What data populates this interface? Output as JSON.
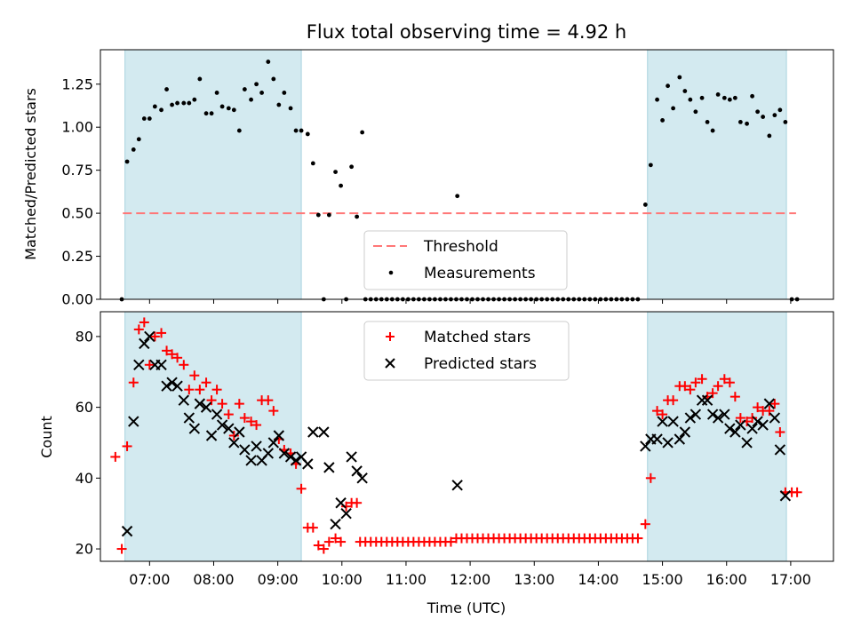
{
  "title": "Flux total observing time = 4.92 h",
  "chart_data": [
    {
      "panel": "top",
      "type": "scatter",
      "ylabel": "Matched/Predicted stars",
      "xlabel": "",
      "xlim": [
        "06:14",
        "17:40"
      ],
      "ylim": [
        0,
        1.45
      ],
      "yticks": [
        0.0,
        0.25,
        0.5,
        0.75,
        1.0,
        1.25
      ],
      "ytick_labels": [
        "0.00",
        "0.25",
        "0.50",
        "0.75",
        "1.00",
        "1.25"
      ],
      "threshold": {
        "name": "Threshold",
        "value": 0.5,
        "x_range": [
          "06:35",
          "17:05"
        ],
        "color": "#ff7777"
      },
      "shaded_spans": [
        [
          "06:37",
          "09:22"
        ],
        [
          "14:46",
          "16:56"
        ]
      ],
      "shade_color": "#d3eaf0",
      "legend": {
        "placement": "lower-center",
        "entries": [
          "Threshold",
          "Measurements"
        ]
      },
      "series": [
        {
          "name": "Measurements",
          "color": "#000000",
          "x": [
            "06:34",
            "06:39",
            "06:45",
            "06:50",
            "06:55",
            "07:00",
            "07:05",
            "07:11",
            "07:16",
            "07:21",
            "07:26",
            "07:32",
            "07:37",
            "07:42",
            "07:47",
            "07:53",
            "07:58",
            "08:03",
            "08:08",
            "08:14",
            "08:19",
            "08:24",
            "08:29",
            "08:35",
            "08:40",
            "08:45",
            "08:51",
            "08:56",
            "09:01",
            "09:06",
            "09:12",
            "09:17",
            "09:22",
            "09:28",
            "09:33",
            "09:38",
            "09:43",
            "09:48",
            "09:54",
            "09:59",
            "10:04",
            "10:09",
            "10:14",
            "10:19",
            "11:48",
            "14:44",
            "14:49",
            "14:55",
            "15:00",
            "15:05",
            "15:10",
            "15:16",
            "15:21",
            "15:26",
            "15:31",
            "15:37",
            "15:42",
            "15:47",
            "15:52",
            "15:58",
            "16:03",
            "16:08",
            "16:13",
            "16:19",
            "16:24",
            "16:29",
            "16:34",
            "16:40",
            "16:45",
            "16:50",
            "16:55",
            "17:01",
            "17:06"
          ],
          "y": [
            0.0,
            0.8,
            0.87,
            0.93,
            1.05,
            1.05,
            1.12,
            1.1,
            1.22,
            1.13,
            1.14,
            1.14,
            1.14,
            1.16,
            1.28,
            1.08,
            1.08,
            1.2,
            1.12,
            1.11,
            1.1,
            0.98,
            1.22,
            1.16,
            1.25,
            1.2,
            1.38,
            1.28,
            1.13,
            1.2,
            1.11,
            0.98,
            0.98,
            0.96,
            0.79,
            0.49,
            0.0,
            0.49,
            0.74,
            0.66,
            0.0,
            0.77,
            0.48,
            0.97,
            0.6,
            0.55,
            0.78,
            1.16,
            1.04,
            1.24,
            1.11,
            1.29,
            1.21,
            1.16,
            1.09,
            1.17,
            1.03,
            0.98,
            1.19,
            1.17,
            1.16,
            1.17,
            1.03,
            1.02,
            1.18,
            1.09,
            1.06,
            0.95,
            1.07,
            1.1,
            1.03,
            0.0,
            0.0
          ],
          "zero_series": {
            "x_from": "10:22",
            "x_to": "14:41",
            "step_minutes": 5,
            "value": 0.0
          }
        }
      ]
    },
    {
      "panel": "bottom",
      "type": "scatter",
      "xlabel": "Time (UTC)",
      "ylabel": "Count",
      "xlim": [
        "06:14",
        "17:40"
      ],
      "ylim": [
        16.5,
        87
      ],
      "yticks": [
        20,
        40,
        60,
        80
      ],
      "xtick_labels": [
        "07:00",
        "08:00",
        "09:00",
        "10:00",
        "11:00",
        "12:00",
        "13:00",
        "14:00",
        "15:00",
        "16:00",
        "17:00"
      ],
      "shaded_spans": [
        [
          "06:37",
          "09:22"
        ],
        [
          "14:46",
          "16:56"
        ]
      ],
      "shade_color": "#d3eaf0",
      "legend": {
        "placement": "upper-center",
        "entries": [
          "Matched stars",
          "Predicted stars"
        ]
      },
      "series": [
        {
          "name": "Matched stars",
          "marker": "+",
          "color": "#ff0000",
          "x": [
            "06:28",
            "06:34",
            "06:39",
            "06:45",
            "06:50",
            "06:55",
            "07:00",
            "07:05",
            "07:11",
            "07:16",
            "07:21",
            "07:26",
            "07:32",
            "07:37",
            "07:42",
            "07:47",
            "07:53",
            "07:58",
            "08:03",
            "08:08",
            "08:14",
            "08:19",
            "08:24",
            "08:29",
            "08:35",
            "08:40",
            "08:45",
            "08:51",
            "08:56",
            "09:01",
            "09:06",
            "09:12",
            "09:17",
            "09:22",
            "09:28",
            "09:33",
            "09:38",
            "09:43",
            "09:48",
            "09:54",
            "09:59",
            "10:04",
            "10:09",
            "10:14",
            "14:44",
            "14:49",
            "14:55",
            "15:00",
            "15:05",
            "15:10",
            "15:16",
            "15:21",
            "15:26",
            "15:31",
            "15:37",
            "15:42",
            "15:47",
            "15:52",
            "15:58",
            "16:03",
            "16:08",
            "16:13",
            "16:19",
            "16:24",
            "16:29",
            "16:34",
            "16:40",
            "16:45",
            "16:50",
            "16:55",
            "17:01",
            "17:06"
          ],
          "y": [
            46,
            20,
            49,
            67,
            82,
            84,
            72,
            80,
            81,
            76,
            75,
            74,
            72,
            65,
            69,
            65,
            67,
            62,
            65,
            61,
            58,
            52,
            61,
            57,
            56,
            55,
            62,
            62,
            59,
            51,
            48,
            47,
            44,
            37,
            26,
            26,
            21,
            20,
            22,
            23,
            22,
            32,
            33,
            33,
            27,
            40,
            59,
            58,
            62,
            62,
            66,
            66,
            65,
            67,
            68,
            63,
            64,
            66,
            68,
            67,
            63,
            57,
            56,
            57,
            60,
            59,
            59,
            61,
            53,
            36,
            36,
            36
          ],
          "flat_series": {
            "x_from": "10:17",
            "x_to": "14:41",
            "step_minutes": 5,
            "value_start": 22,
            "value_end": 23,
            "switch_at": "11:46"
          }
        },
        {
          "name": "Predicted stars",
          "marker": "x",
          "color": "#000000",
          "x": [
            "06:39",
            "06:45",
            "06:50",
            "06:55",
            "07:00",
            "07:05",
            "07:11",
            "07:16",
            "07:21",
            "07:26",
            "07:32",
            "07:37",
            "07:42",
            "07:47",
            "07:53",
            "07:58",
            "08:03",
            "08:08",
            "08:14",
            "08:19",
            "08:24",
            "08:29",
            "08:35",
            "08:40",
            "08:45",
            "08:51",
            "08:56",
            "09:01",
            "09:06",
            "09:12",
            "09:17",
            "09:22",
            "09:28",
            "09:33",
            "09:43",
            "09:48",
            "09:54",
            "09:59",
            "10:04",
            "10:09",
            "10:14",
            "10:19",
            "11:48",
            "14:44",
            "14:49",
            "14:55",
            "15:00",
            "15:05",
            "15:10",
            "15:16",
            "15:21",
            "15:26",
            "15:31",
            "15:37",
            "15:42",
            "15:47",
            "15:52",
            "15:58",
            "16:03",
            "16:08",
            "16:13",
            "16:19",
            "16:24",
            "16:29",
            "16:34",
            "16:40",
            "16:45",
            "16:50",
            "16:55"
          ],
          "y": [
            25,
            56,
            72,
            78,
            80,
            72,
            72,
            66,
            67,
            66,
            62,
            57,
            54,
            61,
            60,
            52,
            58,
            55,
            54,
            50,
            53,
            48,
            45,
            49,
            45,
            47,
            50,
            52,
            47,
            46,
            45,
            46,
            44,
            53,
            53,
            43,
            27,
            33,
            30,
            46,
            42,
            40,
            38,
            49,
            51,
            51,
            56,
            50,
            56,
            51,
            53,
            57,
            58,
            62,
            62,
            58,
            57,
            58,
            54,
            53,
            55,
            50,
            54,
            56,
            55,
            61,
            57,
            48,
            35
          ]
        }
      ]
    }
  ]
}
